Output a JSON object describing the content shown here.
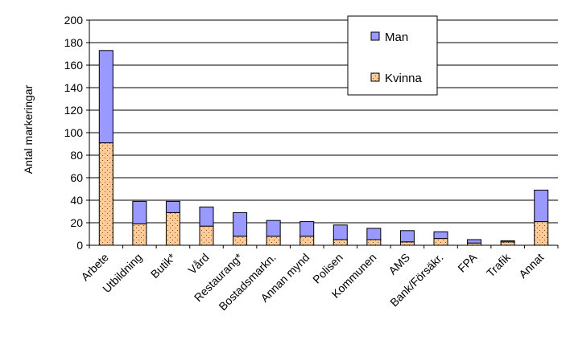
{
  "chart_data": {
    "type": "bar",
    "stacked": true,
    "ylabel": "Antal markeringar",
    "ylim": [
      0,
      200
    ],
    "yticks": [
      0,
      20,
      40,
      60,
      80,
      100,
      120,
      140,
      160,
      180,
      200
    ],
    "grid": true,
    "legend_position": "top-right",
    "categories": [
      "Arbete",
      "Utbildning",
      "Butik*",
      "Vård",
      "Restaurang*",
      "Bostadsmarkn.",
      "Annan mynd",
      "Polisen",
      "Kommunen",
      "AMS",
      "Bank/Försäkr.",
      "FPA",
      "Trafik",
      "Annat"
    ],
    "series": [
      {
        "name": "Kvinna",
        "color": "#ffcc99",
        "pattern": "dotted",
        "values": [
          91,
          19,
          29,
          17,
          8,
          8,
          8,
          5,
          5,
          3,
          6,
          2,
          3,
          21
        ]
      },
      {
        "name": "Man",
        "color": "#9999ff",
        "pattern": "solid",
        "values": [
          82,
          20,
          10,
          17,
          21,
          14,
          13,
          13,
          10,
          10,
          6,
          3,
          1,
          28
        ]
      }
    ]
  }
}
